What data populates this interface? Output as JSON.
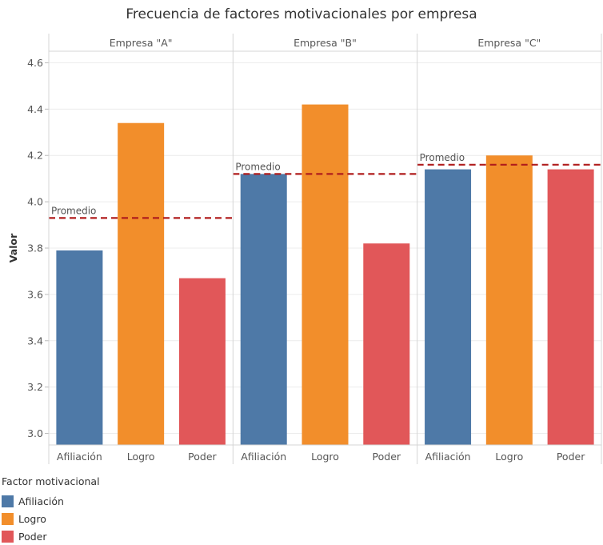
{
  "chart_data": {
    "type": "bar",
    "title": "Frecuencia de factores motivacionales por empresa",
    "ylabel": "Valor",
    "ylim": [
      2.95,
      4.65
    ],
    "yticks": [
      "3.0",
      "3.2",
      "3.4",
      "3.6",
      "3.8",
      "4.0",
      "4.2",
      "4.4",
      "4.6"
    ],
    "categories": [
      "Afiliación",
      "Logro",
      "Poder"
    ],
    "colors": {
      "Afiliación": "#4e79a7",
      "Logro": "#f28e2b",
      "Poder": "#e15759"
    },
    "reference_line": {
      "label": "Promedio",
      "color": "#b01c1c"
    },
    "panels": [
      {
        "name": "Empresa \"A\"",
        "values": [
          3.79,
          4.34,
          3.67
        ],
        "promedio": 3.93
      },
      {
        "name": "Empresa \"B\"",
        "values": [
          4.12,
          4.42,
          3.82
        ],
        "promedio": 4.12
      },
      {
        "name": "Empresa \"C\"",
        "values": [
          4.14,
          4.2,
          4.14
        ],
        "promedio": 4.16
      }
    ],
    "legend": {
      "title": "Factor motivacional",
      "placement": "bottom-left",
      "items": [
        "Afiliación",
        "Logro",
        "Poder"
      ]
    },
    "grid": true
  }
}
